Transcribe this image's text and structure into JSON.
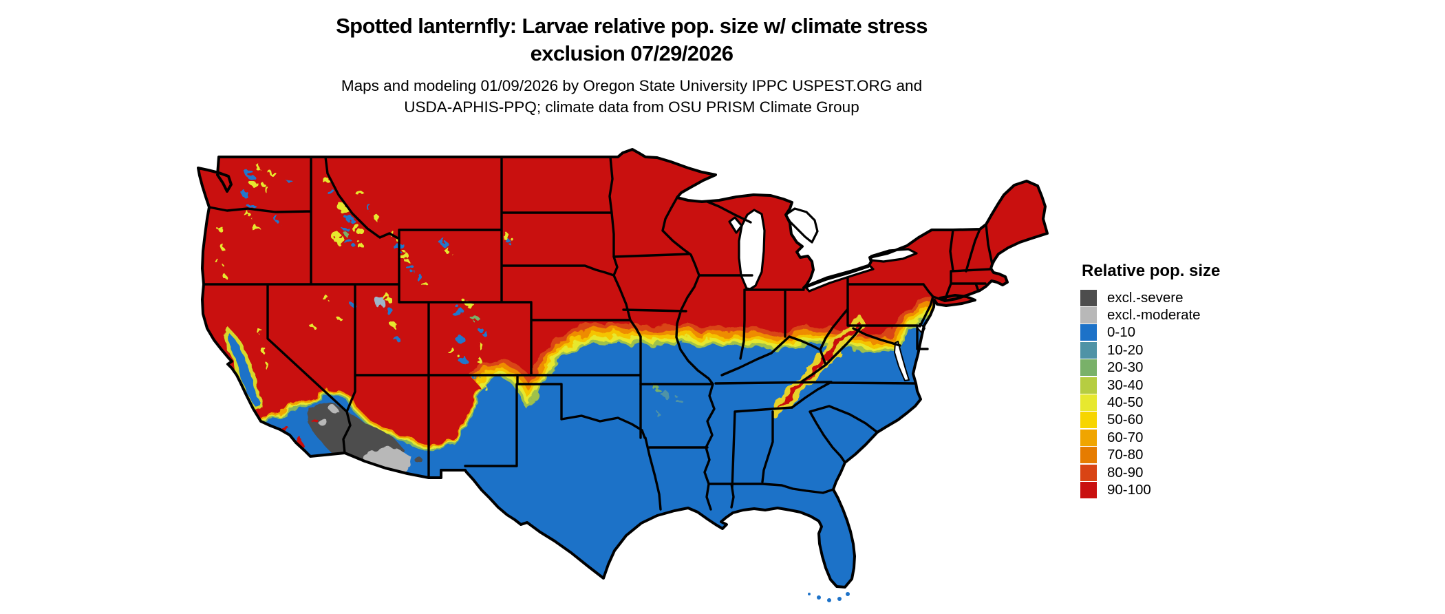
{
  "header": {
    "title_line1": "Spotted lanternfly: Larvae relative pop. size w/ climate stress",
    "title_line2": "exclusion 07/29/2026",
    "subtitle_line1": "Maps and modeling 01/09/2026 by Oregon State University IPPC USPEST.ORG and",
    "subtitle_line2": "USDA-APHIS-PPQ; climate data from OSU PRISM Climate Group"
  },
  "legend": {
    "title": "Relative pop. size",
    "items": [
      {
        "label": "excl.-severe",
        "color": "#4d4d4d"
      },
      {
        "label": "excl.-moderate",
        "color": "#b8b8b8"
      },
      {
        "label": "0-10",
        "color": "#1d72c8"
      },
      {
        "label": "10-20",
        "color": "#4f93a6"
      },
      {
        "label": "20-30",
        "color": "#79b169"
      },
      {
        "label": "30-40",
        "color": "#b6cd41"
      },
      {
        "label": "40-50",
        "color": "#e7e82f"
      },
      {
        "label": "50-60",
        "color": "#f7d500"
      },
      {
        "label": "60-70",
        "color": "#f0a500"
      },
      {
        "label": "70-80",
        "color": "#e67c00"
      },
      {
        "label": "80-90",
        "color": "#d94414"
      },
      {
        "label": "90-100",
        "color": "#c9100f"
      }
    ]
  },
  "map": {
    "region": "contiguous United States",
    "high_risk_color": "#c9100f",
    "low_risk_color": "#1d72c8",
    "exclusion_severe_color": "#4d4d4d",
    "exclusion_moderate_color": "#b8b8b8",
    "state_border_color": "#000000",
    "background_color": "#ffffff"
  }
}
